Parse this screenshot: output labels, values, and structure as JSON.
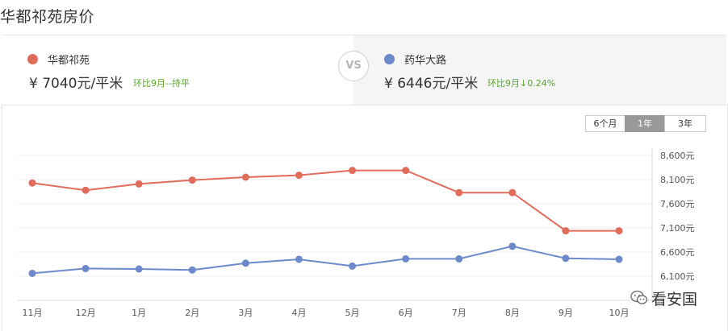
{
  "title": "华都祁苑房价",
  "left": {
    "name": "华都祁苑",
    "price": "¥ 7040元/平米",
    "delta": "环比9月--持平",
    "color": "#e06c5c"
  },
  "vs": "VS",
  "right": {
    "name": "药华大路",
    "price": "¥ 6446元/平米",
    "delta": "环比9月↓0.24%",
    "color": "#6c8acb"
  },
  "ranges": [
    "6个月",
    "1年",
    "3年"
  ],
  "active_range": "1年",
  "watermark": "看安国",
  "chart_data": {
    "type": "line",
    "categories": [
      "11月",
      "12月",
      "1月",
      "2月",
      "3月",
      "4月",
      "5月",
      "6月",
      "7月",
      "8月",
      "9月",
      "10月"
    ],
    "series": [
      {
        "name": "华都祁苑",
        "color": "#e06c5c",
        "values": [
          8030,
          7880,
          8010,
          8090,
          8150,
          8190,
          8290,
          8290,
          7830,
          7830,
          7040,
          7040
        ]
      },
      {
        "name": "药华大路",
        "color": "#6c8acb",
        "values": [
          6160,
          6260,
          6250,
          6230,
          6370,
          6450,
          6310,
          6460,
          6460,
          6720,
          6470,
          6450
        ]
      }
    ],
    "yticks": [
      "8,600元",
      "8,100元",
      "7,600元",
      "7,100元",
      "6,600元",
      "6,100元"
    ],
    "ytick_values": [
      8600,
      8100,
      7600,
      7100,
      6600,
      6100
    ],
    "ylim": [
      5600,
      8600
    ],
    "grid": true
  }
}
